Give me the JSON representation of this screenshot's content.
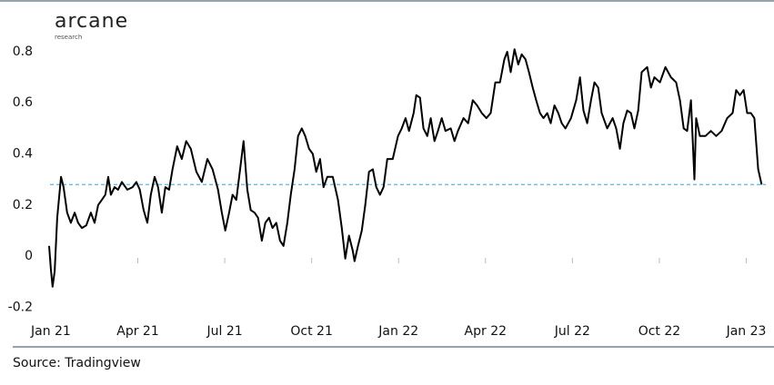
{
  "chart_data": {
    "type": "line",
    "logo": "arcane",
    "logo_sub": "research",
    "source": "Source: Tradingview",
    "color": "#000000",
    "reference_line": 0.28,
    "reference_color": "#5bb8de",
    "xlim": [
      -0.5,
      24.8
    ],
    "ylim": [
      -0.22,
      0.86
    ],
    "yticks": [
      -0.2,
      0,
      0.2,
      0.4,
      0.6,
      0.8
    ],
    "xticks": [
      {
        "value": 0,
        "label": "Jan 21"
      },
      {
        "value": 3,
        "label": "Apr 21"
      },
      {
        "value": 6,
        "label": "Jul 21"
      },
      {
        "value": 9,
        "label": "Oct 21"
      },
      {
        "value": 12,
        "label": "Jan 22"
      },
      {
        "value": 15,
        "label": "Apr 22"
      },
      {
        "value": 18,
        "label": "Jul 22"
      },
      {
        "value": 21,
        "label": "Oct 22"
      },
      {
        "value": 24,
        "label": "Jan 23"
      }
    ],
    "x": [
      -0.06,
      0,
      0.06,
      0.13,
      0.22,
      0.35,
      0.44,
      0.56,
      0.69,
      0.82,
      0.94,
      1.07,
      1.22,
      1.38,
      1.51,
      1.63,
      1.76,
      1.88,
      1.98,
      2.07,
      2.2,
      2.32,
      2.45,
      2.64,
      2.82,
      2.95,
      3.07,
      3.2,
      3.33,
      3.45,
      3.58,
      3.7,
      3.83,
      3.95,
      4.08,
      4.2,
      4.36,
      4.52,
      4.67,
      4.83,
      5.02,
      5.21,
      5.4,
      5.58,
      5.77,
      5.9,
      6.02,
      6.15,
      6.27,
      6.4,
      6.53,
      6.65,
      6.78,
      6.9,
      7.03,
      7.15,
      7.28,
      7.4,
      7.53,
      7.65,
      7.78,
      7.91,
      8.03,
      8.16,
      8.28,
      8.41,
      8.53,
      8.66,
      8.78,
      8.91,
      9.04,
      9.16,
      9.29,
      9.41,
      9.54,
      9.73,
      9.91,
      10.04,
      10.16,
      10.29,
      10.42,
      10.48,
      10.6,
      10.73,
      10.85,
      10.98,
      11.11,
      11.23,
      11.36,
      11.48,
      11.61,
      11.8,
      11.98,
      12.11,
      12.24,
      12.36,
      12.52,
      12.61,
      12.74,
      12.86,
      12.99,
      13.11,
      13.24,
      13.36,
      13.49,
      13.62,
      13.8,
      13.93,
      14.05,
      14.24,
      14.4,
      14.56,
      14.71,
      14.87,
      15.03,
      15.18,
      15.34,
      15.5,
      15.65,
      15.75,
      15.87,
      16,
      16.13,
      16.25,
      16.38,
      16.5,
      16.63,
      16.75,
      16.88,
      17,
      17.13,
      17.25,
      17.38,
      17.51,
      17.63,
      17.76,
      17.95,
      18.13,
      18.26,
      18.38,
      18.51,
      18.64,
      18.76,
      18.89,
      19.01,
      19.2,
      19.39,
      19.51,
      19.64,
      19.76,
      19.89,
      20.02,
      20.14,
      20.27,
      20.39,
      20.58,
      20.71,
      20.83,
      21.02,
      21.21,
      21.4,
      21.58,
      21.71,
      21.84,
      21.96,
      22.09,
      22.21,
      22.27,
      22.4,
      22.59,
      22.78,
      22.96,
      23.15,
      23.34,
      23.53,
      23.65,
      23.78,
      23.91,
      24.03,
      24.16,
      24.28,
      24.41,
      24.53
    ],
    "values": [
      0.04,
      -0.05,
      -0.12,
      -0.06,
      0.15,
      0.31,
      0.27,
      0.17,
      0.13,
      0.17,
      0.13,
      0.11,
      0.12,
      0.17,
      0.13,
      0.2,
      0.22,
      0.24,
      0.31,
      0.24,
      0.27,
      0.26,
      0.29,
      0.26,
      0.27,
      0.29,
      0.26,
      0.18,
      0.13,
      0.24,
      0.31,
      0.27,
      0.17,
      0.27,
      0.26,
      0.34,
      0.43,
      0.38,
      0.45,
      0.42,
      0.33,
      0.29,
      0.38,
      0.34,
      0.26,
      0.17,
      0.1,
      0.17,
      0.24,
      0.22,
      0.34,
      0.45,
      0.26,
      0.18,
      0.17,
      0.15,
      0.06,
      0.13,
      0.15,
      0.11,
      0.13,
      0.06,
      0.04,
      0.13,
      0.24,
      0.34,
      0.47,
      0.5,
      0.47,
      0.42,
      0.4,
      0.33,
      0.38,
      0.27,
      0.31,
      0.31,
      0.22,
      0.11,
      -0.01,
      0.08,
      0.02,
      -0.02,
      0.04,
      0.1,
      0.2,
      0.33,
      0.34,
      0.27,
      0.24,
      0.27,
      0.38,
      0.38,
      0.47,
      0.5,
      0.54,
      0.49,
      0.56,
      0.63,
      0.62,
      0.5,
      0.47,
      0.54,
      0.45,
      0.49,
      0.54,
      0.49,
      0.5,
      0.45,
      0.49,
      0.54,
      0.52,
      0.61,
      0.59,
      0.56,
      0.54,
      0.56,
      0.68,
      0.68,
      0.77,
      0.8,
      0.72,
      0.81,
      0.75,
      0.79,
      0.77,
      0.72,
      0.66,
      0.61,
      0.56,
      0.54,
      0.56,
      0.52,
      0.59,
      0.56,
      0.52,
      0.5,
      0.54,
      0.61,
      0.7,
      0.57,
      0.52,
      0.61,
      0.68,
      0.66,
      0.56,
      0.5,
      0.54,
      0.5,
      0.42,
      0.52,
      0.57,
      0.56,
      0.5,
      0.57,
      0.72,
      0.74,
      0.66,
      0.7,
      0.68,
      0.74,
      0.7,
      0.68,
      0.61,
      0.5,
      0.49,
      0.61,
      0.3,
      0.54,
      0.47,
      0.47,
      0.49,
      0.47,
      0.49,
      0.54,
      0.56,
      0.65,
      0.63,
      0.65,
      0.56,
      0.56,
      0.54,
      0.34,
      0.28
    ]
  }
}
